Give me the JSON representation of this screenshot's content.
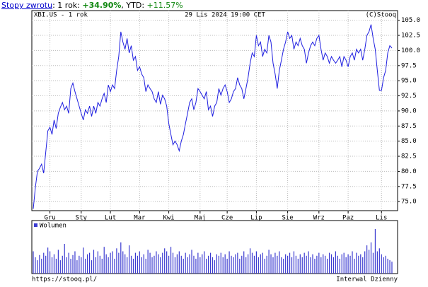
{
  "header": {
    "link": "Stopy zwrotu",
    "return_1y_label": ": 1 rok: ",
    "return_1y": "+34.90%",
    "ytd_label": ", YTD: ",
    "ytd": "+11.57%"
  },
  "footer": {
    "url": "https://stooq.pl/",
    "interval": "Interwal Dzienny"
  },
  "chart_data": [
    {
      "type": "line",
      "ticker_label": "XBI.US - 1 rok",
      "date_label": "29 Lis 2024 19:00 CET",
      "source_label": "(C)Stooq",
      "color": "#1f1fe0",
      "grid": true,
      "ylim": [
        73.5,
        106.6
      ],
      "yticks": [
        {
          "value": 75,
          "label": "75.0"
        },
        {
          "value": 77.5,
          "label": "77.5"
        },
        {
          "value": 80,
          "label": "80.0"
        },
        {
          "value": 82.5,
          "label": "82.5"
        },
        {
          "value": 85,
          "label": "85.0"
        },
        {
          "value": 87.5,
          "label": "87.5"
        },
        {
          "value": 90,
          "label": "90.0"
        },
        {
          "value": 92.5,
          "label": "92.5"
        },
        {
          "value": 95,
          "label": "95.0"
        },
        {
          "value": 97.5,
          "label": "97.5"
        },
        {
          "value": 100,
          "label": "100.0"
        },
        {
          "value": 102.5,
          "label": "102.5"
        },
        {
          "value": 105,
          "label": "105.0"
        }
      ],
      "categories": [
        null,
        null,
        null,
        null,
        null,
        null,
        null,
        null,
        "Gru",
        null,
        null,
        null,
        null,
        null,
        null,
        null,
        null,
        null,
        null,
        null,
        null,
        null,
        null,
        "Sty",
        null,
        null,
        null,
        null,
        null,
        null,
        null,
        null,
        null,
        null,
        null,
        null,
        null,
        "Lut",
        null,
        null,
        null,
        null,
        null,
        null,
        null,
        null,
        null,
        null,
        null,
        null,
        null,
        "Mar",
        null,
        null,
        null,
        null,
        null,
        null,
        null,
        null,
        null,
        null,
        null,
        null,
        null,
        "Kwi",
        null,
        null,
        null,
        null,
        null,
        null,
        null,
        null,
        null,
        null,
        null,
        null,
        null,
        null,
        "Maj",
        null,
        null,
        null,
        null,
        null,
        null,
        null,
        null,
        null,
        null,
        null,
        null,
        "Cze",
        null,
        null,
        null,
        null,
        null,
        null,
        null,
        null,
        null,
        null,
        null,
        null,
        null,
        "Lip",
        null,
        null,
        null,
        null,
        null,
        null,
        null,
        null,
        null,
        null,
        null,
        null,
        null,
        null,
        "Sie",
        null,
        null,
        null,
        null,
        null,
        null,
        null,
        null,
        null,
        null,
        null,
        null,
        null,
        null,
        "Wrz",
        null,
        null,
        null,
        null,
        null,
        null,
        null,
        null,
        null,
        null,
        null,
        null,
        null,
        "Paz",
        null,
        null,
        null,
        null,
        null,
        null,
        null,
        null,
        null,
        null,
        null,
        null,
        null,
        null,
        null,
        "Lis",
        null,
        null,
        null,
        null,
        null
      ],
      "values": [
        73.8,
        77.3,
        80.0,
        80.5,
        81.2,
        79.7,
        83.2,
        86.7,
        87.3,
        86.1,
        88.5,
        87.1,
        89.6,
        90.6,
        91.4,
        90.2,
        90.8,
        89.6,
        93.7,
        94.6,
        93.2,
        92.0,
        90.8,
        89.6,
        88.5,
        90.2,
        89.6,
        90.8,
        89.1,
        90.8,
        89.6,
        91.4,
        90.8,
        92.0,
        92.9,
        91.4,
        94.3,
        93.2,
        94.3,
        93.7,
        96.7,
        99.0,
        103.1,
        101.4,
        100.2,
        102.0,
        99.6,
        100.8,
        98.4,
        99.0,
        96.7,
        97.3,
        96.1,
        95.5,
        93.2,
        94.3,
        93.7,
        93.2,
        92.0,
        91.4,
        93.2,
        91.1,
        92.6,
        92.0,
        90.8,
        87.9,
        86.1,
        84.4,
        85.0,
        84.4,
        83.4,
        85.0,
        86.1,
        87.9,
        89.6,
        91.4,
        92.0,
        90.2,
        91.4,
        93.7,
        93.2,
        92.6,
        92.0,
        93.2,
        90.2,
        90.8,
        89.1,
        90.8,
        91.4,
        93.7,
        92.6,
        93.7,
        94.3,
        93.2,
        91.4,
        92.0,
        93.2,
        93.7,
        95.5,
        94.3,
        93.7,
        92.0,
        93.7,
        95.5,
        97.9,
        99.6,
        99.0,
        102.5,
        100.8,
        101.4,
        99.0,
        100.2,
        99.6,
        102.5,
        101.4,
        97.9,
        96.1,
        93.7,
        96.7,
        98.4,
        100.2,
        101.4,
        103.1,
        102.0,
        102.5,
        100.2,
        101.4,
        100.8,
        102.0,
        100.8,
        100.2,
        97.9,
        99.6,
        100.8,
        101.4,
        100.8,
        102.0,
        102.5,
        100.2,
        98.4,
        99.6,
        99.0,
        97.9,
        99.0,
        98.4,
        97.9,
        98.4,
        99.0,
        97.3,
        99.0,
        98.4,
        97.3,
        99.0,
        99.6,
        98.4,
        100.2,
        99.6,
        100.2,
        98.4,
        100.2,
        102.5,
        103.1,
        104.3,
        102.0,
        100.2,
        96.7,
        93.4,
        93.4,
        95.5,
        96.7,
        99.6,
        100.8,
        100.4
      ]
    },
    {
      "type": "bar",
      "legend": "top-left",
      "series": [
        {
          "name": "Wolumen",
          "color": "#3a3ad0",
          "values": [
            30,
            22,
            18,
            25,
            20,
            28,
            24,
            35,
            30,
            22,
            26,
            20,
            32,
            18,
            24,
            40,
            22,
            28,
            20,
            25,
            30,
            18,
            24,
            22,
            35,
            20,
            26,
            28,
            18,
            32,
            22,
            30,
            24,
            20,
            36,
            26,
            22,
            28,
            30,
            20,
            34,
            28,
            42,
            30,
            26,
            22,
            38,
            24,
            20,
            28,
            24,
            30,
            22,
            26,
            20,
            32,
            28,
            22,
            24,
            30,
            26,
            22,
            28,
            34,
            30,
            24,
            36,
            28,
            22,
            26,
            30,
            24,
            20,
            28,
            22,
            26,
            32,
            24,
            20,
            28,
            22,
            26,
            30,
            20,
            24,
            28,
            22,
            18,
            26,
            24,
            28,
            22,
            26,
            20,
            30,
            24,
            22,
            26,
            28,
            20,
            24,
            30,
            22,
            26,
            34,
            28,
            24,
            30,
            22,
            26,
            28,
            20,
            24,
            32,
            26,
            22,
            28,
            24,
            30,
            22,
            20,
            26,
            24,
            28,
            22,
            30,
            24,
            20,
            26,
            22,
            28,
            24,
            30,
            22,
            26,
            20,
            24,
            28,
            22,
            26,
            24,
            20,
            28,
            26,
            22,
            30,
            24,
            20,
            26,
            28,
            22,
            26,
            24,
            30,
            20,
            28,
            24,
            26,
            22,
            30,
            38,
            32,
            42,
            28,
            60,
            30,
            34,
            26,
            22,
            24,
            20,
            18,
            16
          ]
        }
      ]
    }
  ]
}
